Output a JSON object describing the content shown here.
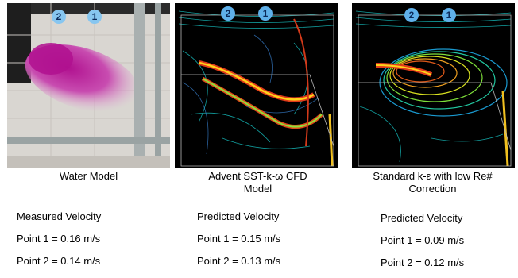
{
  "panels": [
    {
      "caption_line1": "Water Model",
      "caption_line2": "",
      "heading": "Measured Velocity",
      "p1": "Point 1 = 0.16 m/s",
      "p2": "Point 2 = 0.14 m/s",
      "marker_2": "2",
      "marker_1": "1"
    },
    {
      "caption_line1": "Advent SST-k-ω CFD",
      "caption_line2": "Model",
      "heading": "Predicted Velocity",
      "p1": "Point 1 = 0.15 m/s",
      "p2": "Point 2 = 0.13 m/s",
      "marker_2": "2",
      "marker_1": "1"
    },
    {
      "caption_line1": "Standard k-ε with low Re#",
      "caption_line2": "Correction",
      "heading": "Predicted Velocity",
      "p1": "Point 1 = 0.09 m/s",
      "p2": "Point 2 = 0.12 m/s",
      "marker_2": "2",
      "marker_1": "1"
    }
  ]
}
